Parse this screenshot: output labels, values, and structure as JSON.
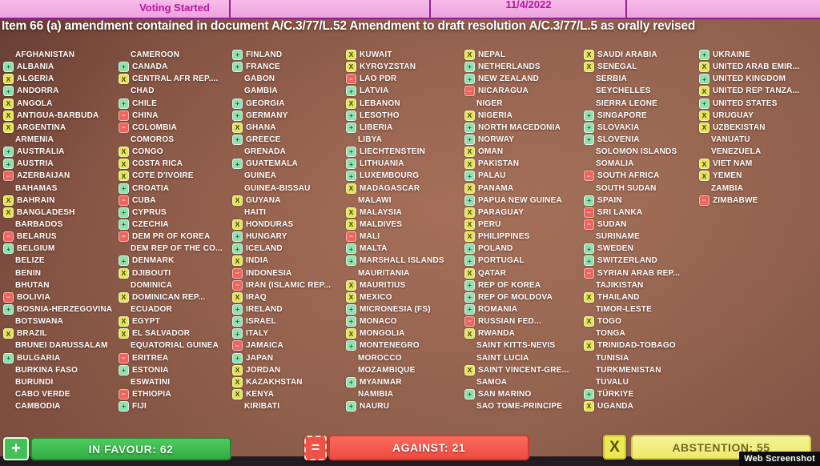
{
  "topbar": {
    "status": "Voting Started",
    "date": "11/4/2022"
  },
  "title": "Item 66 (a) amendment contained in document A/C.3/77/L.52 Amendment to draft resolution A/C.3/77/L.5 as orally revised",
  "vote_symbols": {
    "y": "+",
    "n": "−",
    "a": "X"
  },
  "vote_names": {
    "y": "in-favour-icon",
    "n": "against-icon",
    "a": "abstention-icon"
  },
  "colors": {
    "in_favour_mark": "#93e0ae",
    "against_mark": "#ef655e",
    "abstention_mark": "#e3e45c",
    "in_favour_pill": "#3fbf51",
    "against_pill": "#f25247",
    "abstention_pill": "#eceb67",
    "topbar_pink": "#f2abe4",
    "topbar_text": "#b517a0",
    "screen_bg": "#9a6450"
  },
  "board": {
    "columns": [
      [
        {
          "n": "AFGHANISTAN",
          "v": ""
        },
        {
          "n": "ALBANIA",
          "v": "y"
        },
        {
          "n": "ALGERIA",
          "v": "a"
        },
        {
          "n": "ANDORRA",
          "v": "y"
        },
        {
          "n": "ANGOLA",
          "v": "a"
        },
        {
          "n": "ANTIGUA-BARBUDA",
          "v": "a"
        },
        {
          "n": "ARGENTINA",
          "v": "a"
        },
        {
          "n": "ARMENIA",
          "v": ""
        },
        {
          "n": "AUSTRALIA",
          "v": "y"
        },
        {
          "n": "AUSTRIA",
          "v": "y"
        },
        {
          "n": "AZERBAIJAN",
          "v": "n"
        },
        {
          "n": "BAHAMAS",
          "v": ""
        },
        {
          "n": "BAHRAIN",
          "v": "a"
        },
        {
          "n": "BANGLADESH",
          "v": "a"
        },
        {
          "n": "BARBADOS",
          "v": ""
        },
        {
          "n": "BELARUS",
          "v": "n"
        },
        {
          "n": "BELGIUM",
          "v": "y"
        },
        {
          "n": "BELIZE",
          "v": ""
        },
        {
          "n": "BENIN",
          "v": ""
        },
        {
          "n": "BHUTAN",
          "v": ""
        },
        {
          "n": "BOLIVIA",
          "v": "n"
        },
        {
          "n": "BOSNIA-HERZEGOVINA",
          "v": "y"
        },
        {
          "n": "BOTSWANA",
          "v": ""
        },
        {
          "n": "BRAZIL",
          "v": "a"
        },
        {
          "n": "BRUNEI DARUSSALAM",
          "v": ""
        },
        {
          "n": "BULGARIA",
          "v": "y"
        },
        {
          "n": "BURKINA FASO",
          "v": ""
        },
        {
          "n": "BURUNDI",
          "v": ""
        },
        {
          "n": "CABO VERDE",
          "v": ""
        },
        {
          "n": "CAMBODIA",
          "v": ""
        }
      ],
      [
        {
          "n": "CAMEROON",
          "v": ""
        },
        {
          "n": "CANADA",
          "v": "y"
        },
        {
          "n": "CENTRAL AFR REP....",
          "v": "a"
        },
        {
          "n": "CHAD",
          "v": ""
        },
        {
          "n": "CHILE",
          "v": "y"
        },
        {
          "n": "CHINA",
          "v": "n"
        },
        {
          "n": "COLOMBIA",
          "v": "n"
        },
        {
          "n": "COMOROS",
          "v": ""
        },
        {
          "n": "CONGO",
          "v": "a"
        },
        {
          "n": "COSTA RICA",
          "v": "a"
        },
        {
          "n": "COTE D'IVOIRE",
          "v": "a"
        },
        {
          "n": "CROATIA",
          "v": "y"
        },
        {
          "n": "CUBA",
          "v": "n"
        },
        {
          "n": "CYPRUS",
          "v": "y"
        },
        {
          "n": "CZECHIA",
          "v": "y"
        },
        {
          "n": "DEM PR OF KOREA",
          "v": "n"
        },
        {
          "n": "DEM REP OF THE CO...",
          "v": ""
        },
        {
          "n": "DENMARK",
          "v": "y"
        },
        {
          "n": "DJIBOUTI",
          "v": "a"
        },
        {
          "n": "DOMINICA",
          "v": ""
        },
        {
          "n": "DOMINICAN REP...",
          "v": "a"
        },
        {
          "n": "ECUADOR",
          "v": ""
        },
        {
          "n": "EGYPT",
          "v": "a"
        },
        {
          "n": "EL SALVADOR",
          "v": "a"
        },
        {
          "n": "EQUATORIAL GUINEA",
          "v": ""
        },
        {
          "n": "ERITREA",
          "v": "n"
        },
        {
          "n": "ESTONIA",
          "v": "y"
        },
        {
          "n": "ESWATINI",
          "v": ""
        },
        {
          "n": "ETHIOPIA",
          "v": "n"
        },
        {
          "n": "FIJI",
          "v": "y"
        }
      ],
      [
        {
          "n": "FINLAND",
          "v": "y"
        },
        {
          "n": "FRANCE",
          "v": "y"
        },
        {
          "n": "GABON",
          "v": ""
        },
        {
          "n": "GAMBIA",
          "v": ""
        },
        {
          "n": "GEORGIA",
          "v": "y"
        },
        {
          "n": "GERMANY",
          "v": "y"
        },
        {
          "n": "GHANA",
          "v": "a"
        },
        {
          "n": "GREECE",
          "v": "y"
        },
        {
          "n": "GRENADA",
          "v": ""
        },
        {
          "n": "GUATEMALA",
          "v": "y"
        },
        {
          "n": "GUINEA",
          "v": ""
        },
        {
          "n": "GUINEA-BISSAU",
          "v": ""
        },
        {
          "n": "GUYANA",
          "v": "a"
        },
        {
          "n": "HAITI",
          "v": ""
        },
        {
          "n": "HONDURAS",
          "v": "a"
        },
        {
          "n": "HUNGARY",
          "v": "y"
        },
        {
          "n": "ICELAND",
          "v": "y"
        },
        {
          "n": "INDIA",
          "v": "a"
        },
        {
          "n": "INDONESIA",
          "v": "n"
        },
        {
          "n": "IRAN (ISLAMIC REP...",
          "v": "n"
        },
        {
          "n": "IRAQ",
          "v": "a"
        },
        {
          "n": "IRELAND",
          "v": "y"
        },
        {
          "n": "ISRAEL",
          "v": "y"
        },
        {
          "n": "ITALY",
          "v": "y"
        },
        {
          "n": "JAMAICA",
          "v": "n"
        },
        {
          "n": "JAPAN",
          "v": "y"
        },
        {
          "n": "JORDAN",
          "v": "a"
        },
        {
          "n": "KAZAKHSTAN",
          "v": "a"
        },
        {
          "n": "KENYA",
          "v": "a"
        },
        {
          "n": "KIRIBATI",
          "v": ""
        }
      ],
      [
        {
          "n": "KUWAIT",
          "v": "a"
        },
        {
          "n": "KYRGYZSTAN",
          "v": "a"
        },
        {
          "n": "LAO PDR",
          "v": "n"
        },
        {
          "n": "LATVIA",
          "v": "y"
        },
        {
          "n": "LEBANON",
          "v": "a"
        },
        {
          "n": "LESOTHO",
          "v": "y"
        },
        {
          "n": "LIBERIA",
          "v": "y"
        },
        {
          "n": "LIBYA",
          "v": ""
        },
        {
          "n": "LIECHTENSTEIN",
          "v": "y"
        },
        {
          "n": "LITHUANIA",
          "v": "y"
        },
        {
          "n": "LUXEMBOURG",
          "v": "y"
        },
        {
          "n": "MADAGASCAR",
          "v": "a"
        },
        {
          "n": "MALAWI",
          "v": ""
        },
        {
          "n": "MALAYSIA",
          "v": "a"
        },
        {
          "n": "MALDIVES",
          "v": "a"
        },
        {
          "n": "MALI",
          "v": "n"
        },
        {
          "n": "MALTA",
          "v": "y"
        },
        {
          "n": "MARSHALL ISLANDS",
          "v": "y"
        },
        {
          "n": "MAURITANIA",
          "v": ""
        },
        {
          "n": "MAURITIUS",
          "v": "a"
        },
        {
          "n": "MEXICO",
          "v": "a"
        },
        {
          "n": "MICRONESIA (FS)",
          "v": "y"
        },
        {
          "n": "MONACO",
          "v": "y"
        },
        {
          "n": "MONGOLIA",
          "v": "a"
        },
        {
          "n": "MONTENEGRO",
          "v": "y"
        },
        {
          "n": "MOROCCO",
          "v": ""
        },
        {
          "n": "MOZAMBIQUE",
          "v": ""
        },
        {
          "n": "MYANMAR",
          "v": "y"
        },
        {
          "n": "NAMIBIA",
          "v": ""
        },
        {
          "n": "NAURU",
          "v": "y"
        }
      ],
      [
        {
          "n": "NEPAL",
          "v": "a"
        },
        {
          "n": "NETHERLANDS",
          "v": "y"
        },
        {
          "n": "NEW ZEALAND",
          "v": "y"
        },
        {
          "n": "NICARAGUA",
          "v": "n"
        },
        {
          "n": "NIGER",
          "v": ""
        },
        {
          "n": "NIGERIA",
          "v": "a"
        },
        {
          "n": "NORTH MACEDONIA",
          "v": "y"
        },
        {
          "n": "NORWAY",
          "v": "y"
        },
        {
          "n": "OMAN",
          "v": "a"
        },
        {
          "n": "PAKISTAN",
          "v": "a"
        },
        {
          "n": "PALAU",
          "v": "y"
        },
        {
          "n": "PANAMA",
          "v": "a"
        },
        {
          "n": "PAPUA NEW GUINEA",
          "v": "y"
        },
        {
          "n": "PARAGUAY",
          "v": "a"
        },
        {
          "n": "PERU",
          "v": "a"
        },
        {
          "n": "PHILIPPINES",
          "v": "a"
        },
        {
          "n": "POLAND",
          "v": "y"
        },
        {
          "n": "PORTUGAL",
          "v": "y"
        },
        {
          "n": "QATAR",
          "v": "a"
        },
        {
          "n": "REP OF KOREA",
          "v": "y"
        },
        {
          "n": "REP OF MOLDOVA",
          "v": "y"
        },
        {
          "n": "ROMANIA",
          "v": "y"
        },
        {
          "n": "RUSSIAN FED...",
          "v": "n"
        },
        {
          "n": "RWANDA",
          "v": "a"
        },
        {
          "n": "SAINT KITTS-NEVIS",
          "v": ""
        },
        {
          "n": "SAINT LUCIA",
          "v": ""
        },
        {
          "n": "SAINT VINCENT-GRE...",
          "v": "a"
        },
        {
          "n": "SAMOA",
          "v": ""
        },
        {
          "n": "SAN MARINO",
          "v": "y"
        },
        {
          "n": "SAO TOME-PRINCIPE",
          "v": ""
        }
      ],
      [
        {
          "n": "SAUDI ARABIA",
          "v": "a"
        },
        {
          "n": "SENEGAL",
          "v": "a"
        },
        {
          "n": "SERBIA",
          "v": ""
        },
        {
          "n": "SEYCHELLES",
          "v": ""
        },
        {
          "n": "SIERRA LEONE",
          "v": ""
        },
        {
          "n": "SINGAPORE",
          "v": "y"
        },
        {
          "n": "SLOVAKIA",
          "v": "y"
        },
        {
          "n": "SLOVENIA",
          "v": "y"
        },
        {
          "n": "SOLOMON ISLANDS",
          "v": ""
        },
        {
          "n": "SOMALIA",
          "v": ""
        },
        {
          "n": "SOUTH AFRICA",
          "v": "n"
        },
        {
          "n": "SOUTH SUDAN",
          "v": ""
        },
        {
          "n": "SPAIN",
          "v": "y"
        },
        {
          "n": "SRI LANKA",
          "v": "n"
        },
        {
          "n": "SUDAN",
          "v": "n"
        },
        {
          "n": "SURINAME",
          "v": ""
        },
        {
          "n": "SWEDEN",
          "v": "y"
        },
        {
          "n": "SWITZERLAND",
          "v": "y"
        },
        {
          "n": "SYRIAN ARAB REP...",
          "v": "n"
        },
        {
          "n": "TAJIKISTAN",
          "v": ""
        },
        {
          "n": "THAILAND",
          "v": "a"
        },
        {
          "n": "TIMOR-LESTE",
          "v": ""
        },
        {
          "n": "TOGO",
          "v": "a"
        },
        {
          "n": "TONGA",
          "v": ""
        },
        {
          "n": "TRINIDAD-TOBAGO",
          "v": "a"
        },
        {
          "n": "TUNISIA",
          "v": ""
        },
        {
          "n": "TURKMENISTAN",
          "v": ""
        },
        {
          "n": "TUVALU",
          "v": ""
        },
        {
          "n": "TÜRKIYE",
          "v": "y"
        },
        {
          "n": "UGANDA",
          "v": "a"
        }
      ],
      [
        {
          "n": "UKRAINE",
          "v": "y"
        },
        {
          "n": "UNITED ARAB EMIR...",
          "v": "a"
        },
        {
          "n": "UNITED KINGDOM",
          "v": "y"
        },
        {
          "n": "UNITED REP TANZA...",
          "v": "a"
        },
        {
          "n": "UNITED STATES",
          "v": "y"
        },
        {
          "n": "URUGUAY",
          "v": "a"
        },
        {
          "n": "UZBEKISTAN",
          "v": "a"
        },
        {
          "n": "VANUATU",
          "v": ""
        },
        {
          "n": "VENEZUELA",
          "v": ""
        },
        {
          "n": "VIET NAM",
          "v": "a"
        },
        {
          "n": "YEMEN",
          "v": "a"
        },
        {
          "n": "ZAMBIA",
          "v": ""
        },
        {
          "n": "ZIMBABWE",
          "v": "n"
        }
      ]
    ]
  },
  "footer": {
    "in_favour": {
      "label": "IN FAVOUR: 62",
      "count": 62,
      "symbol": "+"
    },
    "against": {
      "label": "AGAINST: 21",
      "count": 21,
      "symbol": "="
    },
    "abstention": {
      "label": "ABSTENTION: 55",
      "count": 55,
      "symbol": "X"
    }
  },
  "watermark": "Web Screenshot"
}
